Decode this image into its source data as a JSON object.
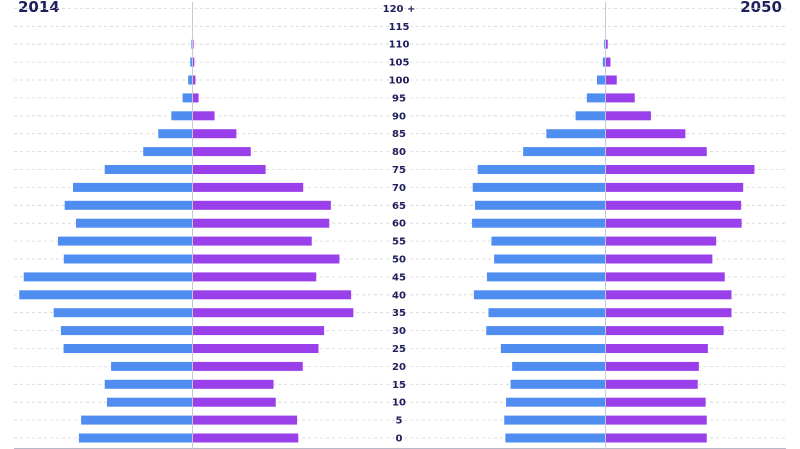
{
  "chart_data": {
    "type": "bar",
    "orientation": "horizontal-population-pyramid",
    "panels": [
      {
        "title": "2014",
        "male": [
          5.05,
          4.95,
          3.8,
          3.9,
          3.62,
          5.73,
          5.85,
          6.17,
          7.7,
          7.5,
          5.72,
          5.98,
          5.18,
          5.68,
          5.31,
          3.9,
          2.19,
          1.52,
          0.94,
          0.44,
          0.19,
          0.1,
          0.05,
          0.02,
          0.0
        ],
        "female": [
          4.7,
          4.65,
          3.7,
          3.6,
          4.9,
          5.6,
          5.85,
          7.15,
          7.05,
          5.5,
          6.53,
          5.3,
          6.08,
          6.15,
          4.92,
          3.25,
          2.59,
          1.95,
          0.98,
          0.27,
          0.13,
          0.08,
          0.05,
          0.0,
          0.0
        ]
      },
      {
        "title": "2050",
        "male": [
          4.45,
          4.5,
          4.42,
          4.22,
          4.15,
          4.65,
          5.3,
          5.2,
          5.85,
          5.27,
          4.95,
          5.07,
          5.93,
          5.8,
          5.9,
          5.68,
          3.66,
          2.63,
          1.33,
          0.83,
          0.38,
          0.12,
          0.06,
          0.0,
          0.0
        ],
        "female": [
          4.5,
          4.5,
          4.45,
          4.1,
          4.15,
          4.55,
          5.25,
          5.6,
          5.6,
          5.3,
          4.75,
          4.92,
          6.05,
          6.03,
          6.12,
          6.62,
          4.5,
          3.55,
          2.02,
          1.3,
          0.5,
          0.22,
          0.1,
          0.02,
          0.0
        ]
      }
    ],
    "categories": [
      "0",
      "5",
      "10",
      "15",
      "20",
      "25",
      "30",
      "35",
      "40",
      "45",
      "50",
      "55",
      "60",
      "65",
      "70",
      "75",
      "80",
      "85",
      "90",
      "95",
      "100",
      "105",
      "110",
      "115",
      "120 +"
    ],
    "series_colors": {
      "male": "#4f8ef0",
      "female": "#9a40ea"
    },
    "label_color": "#1f1f5c",
    "gridlines": true
  }
}
